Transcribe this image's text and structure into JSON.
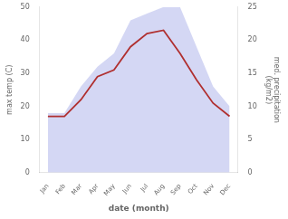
{
  "chart_data": {
    "type": "line",
    "xlabel": "date (month)",
    "ylabel": "max temp (C)",
    "y2label": "med. precipitation\n(kg/m2)",
    "categories": [
      "Jan",
      "Feb",
      "Mar",
      "Apr",
      "May",
      "Jun",
      "Jul",
      "Aug",
      "Sep",
      "Oct",
      "Nov",
      "Dec"
    ],
    "series": [
      {
        "type": "area",
        "axis": "y2",
        "color": "#c5caf0",
        "values": [
          9,
          9,
          13,
          16,
          18,
          23,
          24,
          25,
          25,
          19,
          13,
          10
        ]
      },
      {
        "type": "line",
        "color": "#b03030",
        "values": [
          17,
          17,
          22,
          29,
          31,
          38,
          42,
          43,
          36,
          28,
          21,
          17
        ]
      }
    ],
    "ylim": [
      0,
      50
    ],
    "yticks": [
      0,
      10,
      20,
      30,
      40,
      50
    ],
    "y2lim": [
      0,
      25
    ],
    "y2ticks": [
      0,
      5,
      10,
      15,
      20,
      25
    ],
    "grid": false
  }
}
